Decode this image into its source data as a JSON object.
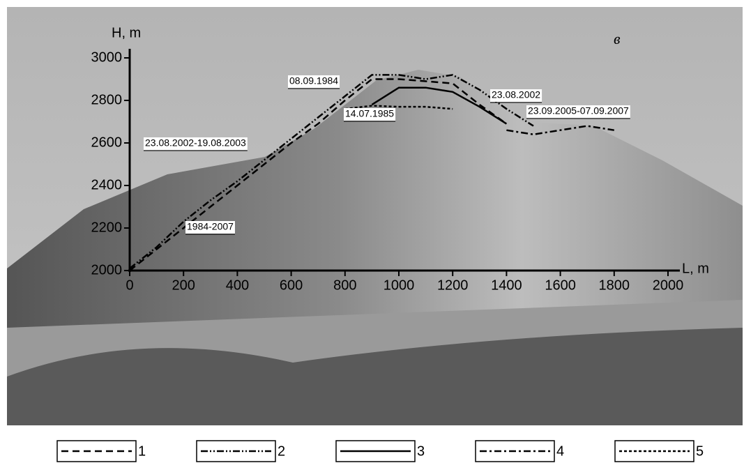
{
  "chart_data": {
    "type": "line",
    "panel_label": "в",
    "x_label": "L, m",
    "y_label": "H, m",
    "x": [
      0,
      100,
      200,
      300,
      400,
      500,
      600,
      700,
      800,
      900,
      1000,
      1100,
      1200,
      1300,
      1400,
      1500,
      1600,
      1700,
      1800
    ],
    "series": [
      {
        "name": "1",
        "color": "#000000",
        "dash": "10,6",
        "values": [
          2000,
          2100,
          2200,
          2300,
          2400,
          2500,
          2600,
          2690,
          2800,
          2900,
          2900,
          2890,
          2880,
          2780,
          2690,
          null,
          null,
          null,
          null
        ]
      },
      {
        "name": "2",
        "color": "#000000",
        "dash": "10,3,2,3,2,3",
        "values": [
          2010,
          2110,
          2230,
          2330,
          2420,
          2520,
          2620,
          2720,
          2820,
          2920,
          2920,
          2900,
          2920,
          2850,
          2760,
          2680,
          null,
          null,
          null
        ]
      },
      {
        "name": "3",
        "color": "#000000",
        "dash": "none",
        "values": [
          null,
          null,
          null,
          null,
          null,
          null,
          null,
          null,
          null,
          2780,
          2860,
          2860,
          2840,
          2770,
          2690,
          null,
          null,
          null,
          null
        ]
      },
      {
        "name": "4",
        "color": "#000000",
        "dash": "10,4,3,4",
        "values": [
          null,
          null,
          null,
          null,
          null,
          null,
          null,
          null,
          null,
          null,
          null,
          null,
          null,
          null,
          2660,
          2640,
          2660,
          2680,
          2660
        ]
      },
      {
        "name": "5",
        "color": "#000000",
        "dash": "4,3",
        "values": [
          null,
          null,
          null,
          null,
          null,
          null,
          null,
          null,
          2760,
          2775,
          2770,
          2770,
          2760,
          null,
          null,
          null,
          null,
          null,
          null
        ]
      }
    ],
    "annotations": [
      "08.09.1984",
      "23.08.2002",
      "14.07.1985",
      "23.09.2005-07.09.2007",
      "23.08.2002-19.08.2003",
      "1984-2007"
    ],
    "xlim": [
      0,
      2000
    ],
    "xticks": [
      0,
      200,
      400,
      600,
      800,
      1000,
      1200,
      1400,
      1600,
      1800,
      2000
    ],
    "ylim": [
      2000,
      3000
    ],
    "yticks": [
      2000,
      2200,
      2400,
      2600,
      2800,
      3000
    ]
  }
}
